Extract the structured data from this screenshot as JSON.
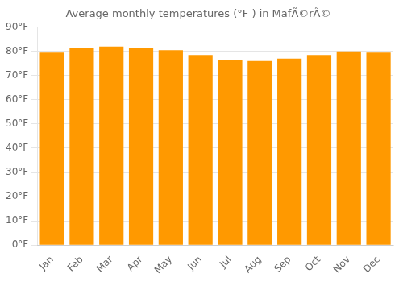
{
  "chart_data": {
    "type": "bar",
    "title": "Average monthly temperatures (°F ) in MafÃ©rÃ©",
    "categories": [
      "Jan",
      "Feb",
      "Mar",
      "Apr",
      "May",
      "Jun",
      "Jul",
      "Aug",
      "Sep",
      "Oct",
      "Nov",
      "Dec"
    ],
    "values": [
      79.5,
      81.5,
      82.0,
      81.5,
      80.5,
      78.5,
      76.5,
      76.0,
      77.0,
      78.5,
      80.0,
      79.5
    ],
    "color": "#FF9900",
    "ylim": [
      0,
      90
    ],
    "yticks": [
      {
        "value": 0,
        "label": "0°F"
      },
      {
        "value": 10,
        "label": "10°F"
      },
      {
        "value": 20,
        "label": "20°F"
      },
      {
        "value": 30,
        "label": "30°F"
      },
      {
        "value": 40,
        "label": "40°F"
      },
      {
        "value": 50,
        "label": "50°F"
      },
      {
        "value": 60,
        "label": "60°F"
      },
      {
        "value": 70,
        "label": "70°F"
      },
      {
        "value": 80,
        "label": "80°F"
      },
      {
        "value": 90,
        "label": "90°F"
      }
    ],
    "grid": true
  }
}
